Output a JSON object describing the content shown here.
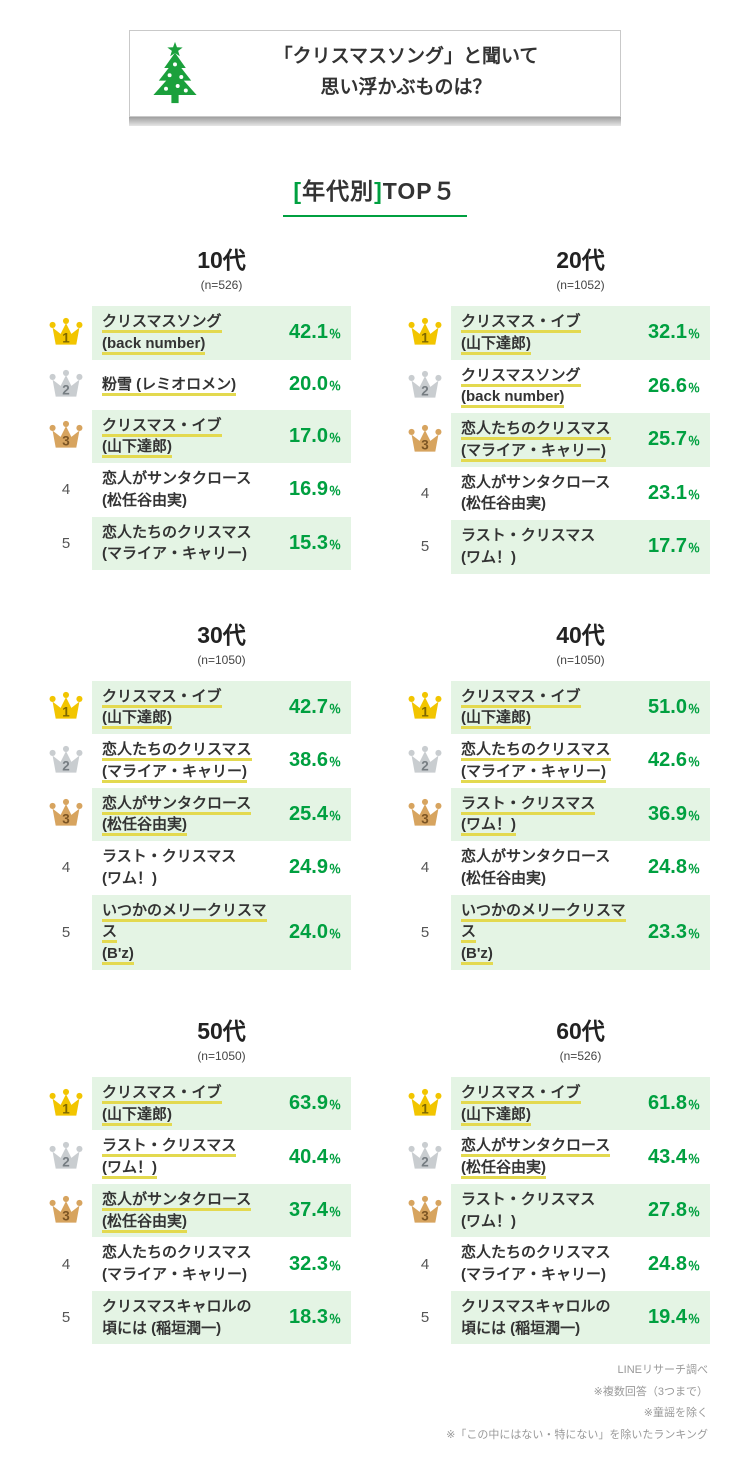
{
  "header": {
    "title_line1": "「クリスマスソング」と聞いて",
    "title_line2": "思い浮かぶものは？"
  },
  "section": {
    "bracket_open": "[",
    "label": "年代別",
    "bracket_close": "]",
    "suffix": "TOP５"
  },
  "colors": {
    "accent_green": "#00a040",
    "tree_green": "#1ba03c",
    "row_green": "#e4f4e4",
    "marker_yellow": "#e3d94f",
    "gold": "#f2c500",
    "silver": "#c9cdd0",
    "bronze": "#d7a45f"
  },
  "footer": {
    "lines": [
      "LINEリサーチ調べ",
      "※複数回答（3つまで）",
      "※童謡を除く",
      "※「この中にはない・特にない」を除いたランキング"
    ]
  },
  "chart_data": {
    "type": "table",
    "title": "「クリスマスソング」と聞いて思い浮かぶものは？ [年代別]TOP5",
    "unit": "％",
    "groups": [
      {
        "age": "10代",
        "n": 526,
        "n_label": "(n=526)",
        "ranking": [
          {
            "rank": 1,
            "song": "クリスマスソング (back number)",
            "lines": [
              "クリスマスソング",
              "(back number)"
            ],
            "value": 42.1,
            "marker": true
          },
          {
            "rank": 2,
            "song": "粉雪 (レミオロメン)",
            "lines": [
              "粉雪 (レミオロメン)"
            ],
            "value": 20.0,
            "marker": true
          },
          {
            "rank": 3,
            "song": "クリスマス・イブ (山下達郎)",
            "lines": [
              "クリスマス・イブ",
              "(山下達郎)"
            ],
            "value": 17.0,
            "marker": true
          },
          {
            "rank": 4,
            "song": "恋人がサンタクロース (松任谷由実)",
            "lines": [
              "恋人がサンタクロース",
              "(松任谷由実)"
            ],
            "value": 16.9,
            "marker": false
          },
          {
            "rank": 5,
            "song": "恋人たちのクリスマス (マライア・キャリー)",
            "lines": [
              "恋人たちのクリスマス",
              "(マライア・キャリー)"
            ],
            "value": 15.3,
            "marker": false
          }
        ]
      },
      {
        "age": "20代",
        "n": 1052,
        "n_label": "(n=1052)",
        "ranking": [
          {
            "rank": 1,
            "song": "クリスマス・イブ (山下達郎)",
            "lines": [
              "クリスマス・イブ",
              "(山下達郎)"
            ],
            "value": 32.1,
            "marker": true
          },
          {
            "rank": 2,
            "song": "クリスマスソング (back number)",
            "lines": [
              "クリスマスソング",
              "(back number)"
            ],
            "value": 26.6,
            "marker": true
          },
          {
            "rank": 3,
            "song": "恋人たちのクリスマス (マライア・キャリー)",
            "lines": [
              "恋人たちのクリスマス",
              "(マライア・キャリー)"
            ],
            "value": 25.7,
            "marker": true
          },
          {
            "rank": 4,
            "song": "恋人がサンタクロース (松任谷由実)",
            "lines": [
              "恋人がサンタクロース",
              "(松任谷由実)"
            ],
            "value": 23.1,
            "marker": false
          },
          {
            "rank": 5,
            "song": "ラスト・クリスマス (ワム！)",
            "lines": [
              "ラスト・クリスマス",
              "(ワム！)"
            ],
            "value": 17.7,
            "marker": false
          }
        ]
      },
      {
        "age": "30代",
        "n": 1050,
        "n_label": "(n=1050)",
        "ranking": [
          {
            "rank": 1,
            "song": "クリスマス・イブ (山下達郎)",
            "lines": [
              "クリスマス・イブ",
              "(山下達郎)"
            ],
            "value": 42.7,
            "marker": true
          },
          {
            "rank": 2,
            "song": "恋人たちのクリスマス (マライア・キャリー)",
            "lines": [
              "恋人たちのクリスマス",
              "(マライア・キャリー)"
            ],
            "value": 38.6,
            "marker": true
          },
          {
            "rank": 3,
            "song": "恋人がサンタクロース (松任谷由実)",
            "lines": [
              "恋人がサンタクロース",
              "(松任谷由実)"
            ],
            "value": 25.4,
            "marker": true
          },
          {
            "rank": 4,
            "song": "ラスト・クリスマス (ワム！)",
            "lines": [
              "ラスト・クリスマス",
              "(ワム！)"
            ],
            "value": 24.9,
            "marker": false
          },
          {
            "rank": 5,
            "song": "いつかのメリークリスマス (B'z)",
            "lines": [
              "いつかのメリークリスマス",
              "(B'z)"
            ],
            "value": 24.0,
            "marker": true
          }
        ]
      },
      {
        "age": "40代",
        "n": 1050,
        "n_label": "(n=1050)",
        "ranking": [
          {
            "rank": 1,
            "song": "クリスマス・イブ (山下達郎)",
            "lines": [
              "クリスマス・イブ",
              "(山下達郎)"
            ],
            "value": 51.0,
            "marker": true
          },
          {
            "rank": 2,
            "song": "恋人たちのクリスマス (マライア・キャリー)",
            "lines": [
              "恋人たちのクリスマス",
              "(マライア・キャリー)"
            ],
            "value": 42.6,
            "marker": true
          },
          {
            "rank": 3,
            "song": "ラスト・クリスマス (ワム！)",
            "lines": [
              "ラスト・クリスマス",
              "(ワム！)"
            ],
            "value": 36.9,
            "marker": true
          },
          {
            "rank": 4,
            "song": "恋人がサンタクロース (松任谷由実)",
            "lines": [
              "恋人がサンタクロース",
              "(松任谷由実)"
            ],
            "value": 24.8,
            "marker": false
          },
          {
            "rank": 5,
            "song": "いつかのメリークリスマス (B'z)",
            "lines": [
              "いつかのメリークリスマス",
              "(B'z)"
            ],
            "value": 23.3,
            "marker": true
          }
        ]
      },
      {
        "age": "50代",
        "n": 1050,
        "n_label": "(n=1050)",
        "ranking": [
          {
            "rank": 1,
            "song": "クリスマス・イブ (山下達郎)",
            "lines": [
              "クリスマス・イブ",
              "(山下達郎)"
            ],
            "value": 63.9,
            "marker": true
          },
          {
            "rank": 2,
            "song": "ラスト・クリスマス (ワム！)",
            "lines": [
              "ラスト・クリスマス",
              "(ワム！)"
            ],
            "value": 40.4,
            "marker": true
          },
          {
            "rank": 3,
            "song": "恋人がサンタクロース (松任谷由実)",
            "lines": [
              "恋人がサンタクロース",
              "(松任谷由実)"
            ],
            "value": 37.4,
            "marker": true
          },
          {
            "rank": 4,
            "song": "恋人たちのクリスマス (マライア・キャリー)",
            "lines": [
              "恋人たちのクリスマス",
              "(マライア・キャリー)"
            ],
            "value": 32.3,
            "marker": false
          },
          {
            "rank": 5,
            "song": "クリスマスキャロルの頃には (稲垣潤一)",
            "lines": [
              "クリスマスキャロルの",
              "頃には (稲垣潤一)"
            ],
            "value": 18.3,
            "marker": false
          }
        ]
      },
      {
        "age": "60代",
        "n": 526,
        "n_label": "(n=526)",
        "ranking": [
          {
            "rank": 1,
            "song": "クリスマス・イブ (山下達郎)",
            "lines": [
              "クリスマス・イブ",
              "(山下達郎)"
            ],
            "value": 61.8,
            "marker": true
          },
          {
            "rank": 2,
            "song": "恋人がサンタクロース (松任谷由実)",
            "lines": [
              "恋人がサンタクロース",
              "(松任谷由実)"
            ],
            "value": 43.4,
            "marker": true
          },
          {
            "rank": 3,
            "song": "ラスト・クリスマス (ワム！)",
            "lines": [
              "ラスト・クリスマス",
              "(ワム！)"
            ],
            "value": 27.8,
            "marker": false
          },
          {
            "rank": 4,
            "song": "恋人たちのクリスマス (マライア・キャリー)",
            "lines": [
              "恋人たちのクリスマス",
              "(マライア・キャリー)"
            ],
            "value": 24.8,
            "marker": false
          },
          {
            "rank": 5,
            "song": "クリスマスキャロルの頃には (稲垣潤一)",
            "lines": [
              "クリスマスキャロルの",
              "頃には (稲垣潤一)"
            ],
            "value": 19.4,
            "marker": false
          }
        ]
      }
    ]
  }
}
